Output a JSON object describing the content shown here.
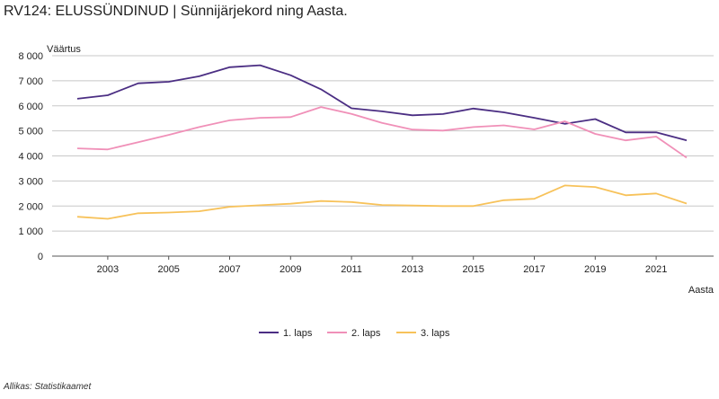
{
  "title": "RV124: ELUSSÜNDINUD | Sünnijärjekord ning Aasta.",
  "source": "Allikas: Statistikaamet",
  "chart_data": {
    "type": "line",
    "title": "RV124: ELUSSÜNDINUD | Sünnijärjekord ning Aasta.",
    "ylabel": "Väärtus",
    "xlabel": "Aasta",
    "x": [
      2002,
      2003,
      2004,
      2005,
      2006,
      2007,
      2008,
      2009,
      2010,
      2011,
      2012,
      2013,
      2014,
      2015,
      2016,
      2017,
      2018,
      2019,
      2020,
      2021,
      2022
    ],
    "xticks": [
      2003,
      2005,
      2007,
      2009,
      2011,
      2013,
      2015,
      2017,
      2019,
      2021
    ],
    "xtick_labels": [
      "2003",
      "2005",
      "2007",
      "2009",
      "2011",
      "2013",
      "2015",
      "2017",
      "2019",
      "2021"
    ],
    "ylim": [
      0,
      8000
    ],
    "yticks": [
      0,
      1000,
      2000,
      3000,
      4000,
      5000,
      6000,
      7000,
      8000
    ],
    "ytick_labels": [
      "0",
      "1 000",
      "2 000",
      "3 000",
      "4 000",
      "5 000",
      "6 000",
      "7 000",
      "8 000"
    ],
    "grid": true,
    "legend_position": "bottom",
    "series": [
      {
        "name": "1. laps",
        "color": "#4b2e83",
        "values": [
          6280,
          6420,
          6900,
          6960,
          7180,
          7540,
          7620,
          7220,
          6660,
          5900,
          5780,
          5620,
          5670,
          5890,
          5740,
          5520,
          5280,
          5470,
          4940,
          4940,
          4620
        ]
      },
      {
        "name": "2. laps",
        "color": "#f090b8",
        "values": [
          4300,
          4260,
          4550,
          4840,
          5150,
          5420,
          5520,
          5550,
          5950,
          5680,
          5320,
          5050,
          5010,
          5150,
          5220,
          5060,
          5380,
          4880,
          4620,
          4770,
          3930
        ]
      },
      {
        "name": "3. laps",
        "color": "#f7c25a",
        "values": [
          1570,
          1490,
          1710,
          1740,
          1790,
          1970,
          2030,
          2090,
          2200,
          2160,
          2040,
          2020,
          2000,
          2000,
          2230,
          2290,
          2820,
          2760,
          2430,
          2500,
          2100
        ]
      }
    ]
  }
}
